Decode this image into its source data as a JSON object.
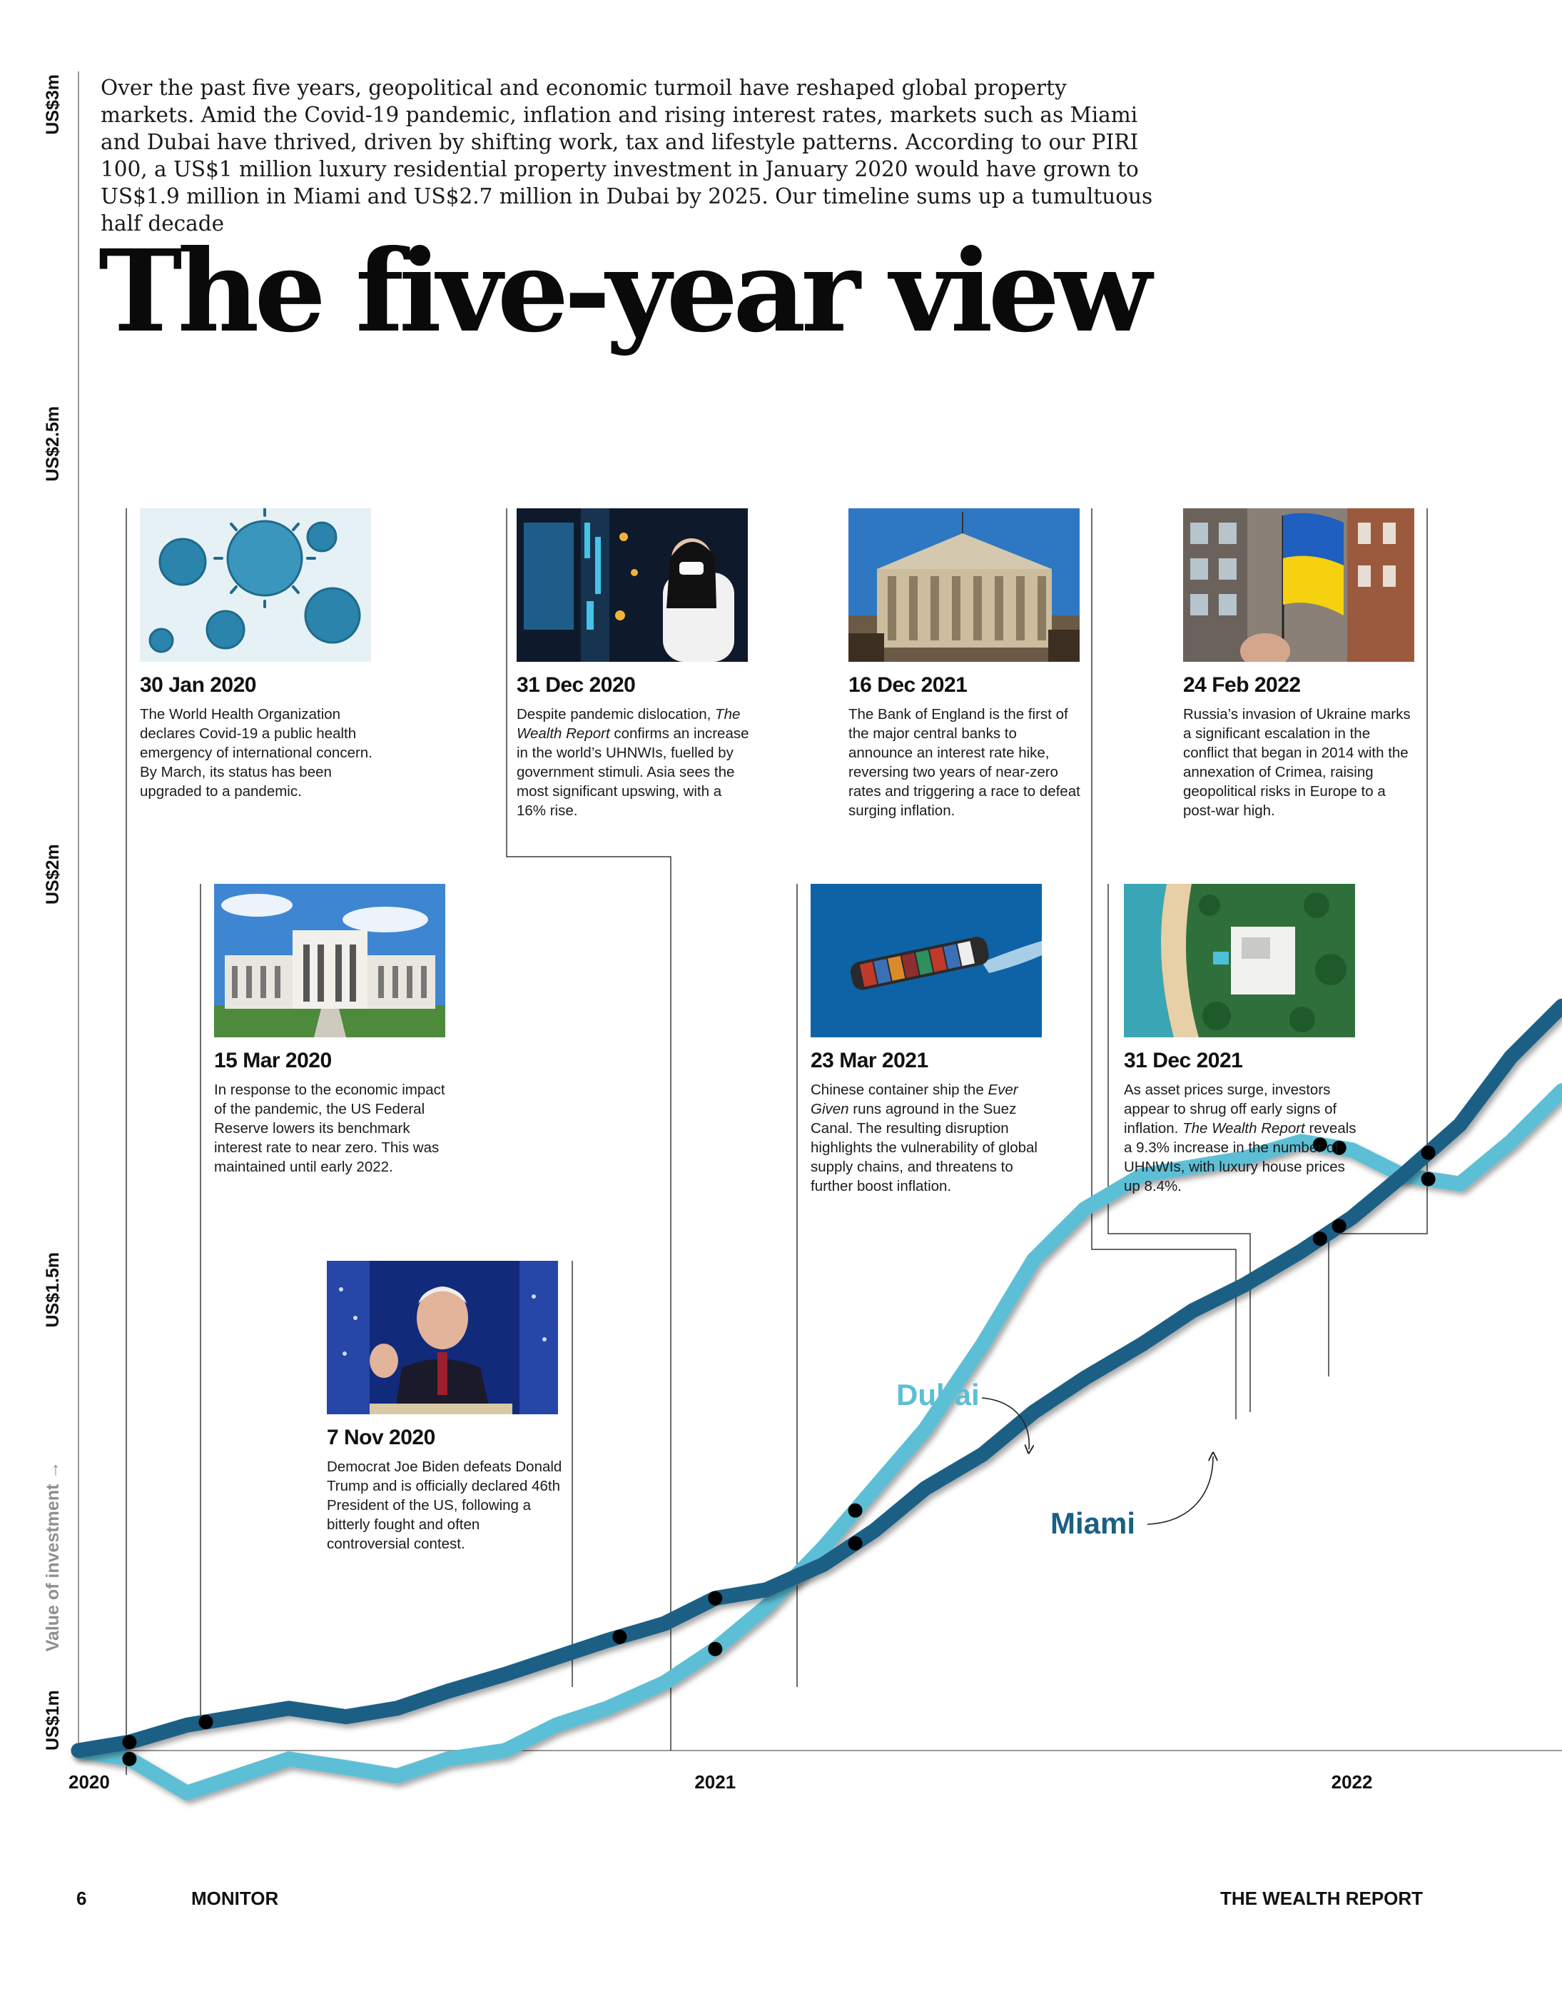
{
  "intro": "Over the past five years, geopolitical and economic turmoil have reshaped global property markets. Amid the Covid-19 pandemic, inflation and rising interest rates, markets such as Miami and Dubai have thrived, driven by shifting work, tax and lifestyle patterns. According to our PIRI 100, a US$1 million luxury residential property investment in January 2020 would have grown to US$1.9 million in Miami and US$2.7 million in Dubai by 2025. Our timeline sums up a tumultuous half decade",
  "headline": "The five-year view",
  "colors": {
    "miami": "#1a5f85",
    "dubai": "#5bbfd6",
    "axis": "#9a9a9a",
    "marker": "#000000"
  },
  "chart_data": {
    "type": "line",
    "ylabel": "Value of investment →",
    "y_ticks": [
      {
        "value": 1.0,
        "label": "US$1m"
      },
      {
        "value": 1.5,
        "label": "US$1.5m"
      },
      {
        "value": 2.0,
        "label": "US$2m"
      },
      {
        "value": 2.5,
        "label": "US$2.5m"
      },
      {
        "value": 3.0,
        "label": "US$3m"
      }
    ],
    "x_ticks": [
      {
        "value": 2020.0,
        "label": "2020"
      },
      {
        "value": 2021.0,
        "label": "2021"
      },
      {
        "value": 2022.0,
        "label": "2022"
      }
    ],
    "xlim": [
      2020.0,
      2022.33
    ],
    "ylim": [
      1.0,
      3.0
    ],
    "grid": false,
    "series": [
      {
        "name": "Miami",
        "x": [
          2020.0,
          2020.08,
          2020.17,
          2020.25,
          2020.33,
          2020.42,
          2020.5,
          2020.58,
          2020.67,
          2020.75,
          2020.83,
          2020.92,
          2021.0,
          2021.08,
          2021.17,
          2021.25,
          2021.33,
          2021.42,
          2021.5,
          2021.58,
          2021.67,
          2021.75,
          2021.83,
          2021.92,
          2022.0,
          2022.08,
          2022.17,
          2022.25,
          2022.33
        ],
        "values": [
          1.0,
          1.01,
          1.03,
          1.04,
          1.05,
          1.04,
          1.05,
          1.07,
          1.09,
          1.11,
          1.13,
          1.15,
          1.18,
          1.19,
          1.22,
          1.26,
          1.31,
          1.35,
          1.4,
          1.44,
          1.48,
          1.52,
          1.55,
          1.59,
          1.63,
          1.68,
          1.74,
          1.82,
          1.88
        ]
      },
      {
        "name": "Dubai",
        "x": [
          2020.0,
          2020.08,
          2020.17,
          2020.25,
          2020.33,
          2020.42,
          2020.5,
          2020.58,
          2020.67,
          2020.75,
          2020.83,
          2020.92,
          2021.0,
          2021.08,
          2021.17,
          2021.25,
          2021.33,
          2021.42,
          2021.5,
          2021.58,
          2021.67,
          2021.75,
          2021.83,
          2021.92,
          2022.0,
          2022.08,
          2022.17,
          2022.25,
          2022.33
        ],
        "values": [
          1.0,
          0.99,
          0.95,
          0.97,
          0.99,
          0.98,
          0.97,
          0.99,
          1.0,
          1.03,
          1.05,
          1.08,
          1.12,
          1.17,
          1.24,
          1.31,
          1.38,
          1.48,
          1.58,
          1.64,
          1.68,
          1.69,
          1.7,
          1.72,
          1.71,
          1.68,
          1.67,
          1.72,
          1.78
        ]
      }
    ],
    "events": [
      {
        "date": "30 Jan 2020",
        "x": 2020.08,
        "series": "both"
      },
      {
        "date": "15 Mar 2020",
        "x": 2020.2,
        "series": "Miami"
      },
      {
        "date": "7 Nov 2020",
        "x": 2020.85,
        "series": "Miami"
      },
      {
        "date": "31 Dec 2020",
        "x": 2021.0,
        "series": "both"
      },
      {
        "date": "23 Mar 2021",
        "x": 2021.22,
        "series": "both"
      },
      {
        "date": "16 Dec 2021",
        "x": 2021.95,
        "series": "both"
      },
      {
        "date": "31 Dec 2021",
        "x": 2021.98,
        "series": "both"
      },
      {
        "date": "24 Feb 2022",
        "x": 2022.12,
        "series": "both"
      }
    ]
  },
  "events": [
    {
      "date": "30 Jan 2020",
      "text": "The World Health Organization declares Covid-19 a public health emergency of international concern. By March, its status has been upgraded to a pandemic.",
      "photo": "coronavirus"
    },
    {
      "date": "31 Dec 2020",
      "text_html": "Despite pandemic dislocation, <i>The Wealth Report</i> confirms an increase in the world’s UHNWIs, fuelled by government stimuli. Asia sees the most significant upswing, with a 16% rise.",
      "photo": "trader-screens"
    },
    {
      "date": "16 Dec 2021",
      "text": "The Bank of England is the first of the major central banks to announce an interest rate hike, reversing two years of near-zero rates and triggering a race to defeat surging inflation.",
      "photo": "bank-of-england"
    },
    {
      "date": "24 Feb 2022",
      "text": "Russia’s invasion of Ukraine marks a significant escalation in the conflict that began in 2014 with the annexation of Crimea, raising geopolitical risks in Europe to a post-war high.",
      "photo": "ukraine-flag"
    },
    {
      "date": "15 Mar 2020",
      "text": "In response to the economic impact of the pandemic, the US Federal Reserve lowers its benchmark interest rate to near zero. This was maintained until early 2022.",
      "photo": "federal-reserve"
    },
    {
      "date": "23 Mar 2021",
      "text_html": "Chinese container ship the <i>Ever Given</i> runs aground in the Suez Canal. The resulting disruption highlights the vulnerability of global supply chains, and threatens to further boost inflation.",
      "photo": "container-ship"
    },
    {
      "date": "31 Dec 2021",
      "text_html": "As asset prices surge, investors appear to shrug off early signs of inflation. <i>The Wealth Report</i> reveals a 9.3% increase in the number of UHNWIs, with luxury house prices up 8.4%.",
      "photo": "coastal-mansion"
    },
    {
      "date": "7 Nov 2020",
      "text": "Democrat Joe Biden defeats Donald Trump and is officially declared 46th President of the US, following a bitterly fought and often controversial contest.",
      "photo": "biden-speech"
    }
  ],
  "labels": {
    "dubai": "Dubai",
    "miami": "Miami"
  },
  "footer": {
    "page": "6",
    "section": "MONITOR",
    "publication": "THE WEALTH REPORT"
  }
}
